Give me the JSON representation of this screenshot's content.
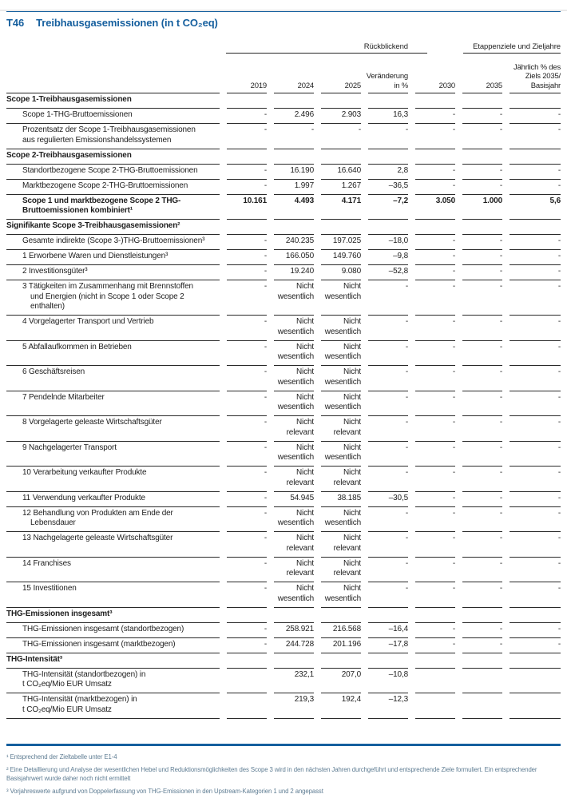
{
  "title": {
    "tag": "T46",
    "text": "Treibhausgasemissionen (in t CO₂eq)"
  },
  "colors": {
    "accent_blue": "#155f9e",
    "text": "#1e1e1e",
    "table_line": "#2a2a2a",
    "footnote_text": "#5f7d93"
  },
  "table": {
    "groups": [
      {
        "label": "Rückblickend"
      },
      {
        "label": "Etappenziele und Zieljahre"
      }
    ],
    "columns": [
      "2019",
      "2024",
      "2025",
      "Veränderung\nin %",
      "2030",
      "2035",
      "Jährlich % des\nZiels 2035/\nBasisjahr"
    ],
    "rows": [
      {
        "type": "section",
        "label": "Scope 1-Treibhausgasemissionen",
        "values": [
          "",
          "",
          "",
          "",
          "",
          "",
          ""
        ]
      },
      {
        "type": "data",
        "label": "Scope 1-THG-Bruttoemissionen",
        "values": [
          "-",
          "2.496",
          "2.903",
          "16,3",
          "-",
          "-",
          "-"
        ]
      },
      {
        "type": "data",
        "label": "Prozentsatz der Scope 1-Treibhausgasemissionen\naus regulierten Emissionshandelssystemen",
        "values": [
          "-",
          "-",
          "-",
          "-",
          "-",
          "-",
          "-"
        ]
      },
      {
        "type": "section",
        "label": "Scope 2-Treibhausgasemissionen",
        "values": [
          "",
          "",
          "",
          "",
          "",
          "",
          ""
        ]
      },
      {
        "type": "data",
        "label": "Standortbezogene Scope 2-THG-Bruttoemissionen",
        "values": [
          "-",
          "16.190",
          "16.640",
          "2,8",
          "-",
          "-",
          "-"
        ]
      },
      {
        "type": "data",
        "label": "Marktbezogene Scope 2-THG-Bruttoemissionen",
        "values": [
          "-",
          "1.997",
          "1.267",
          "–36,5",
          "-",
          "-",
          "-"
        ]
      },
      {
        "type": "total",
        "label": "Scope 1 und marktbezogene Scope 2 THG-\nBruttoemissionen kombiniert¹",
        "values": [
          "10.161",
          "4.493",
          "4.171",
          "–7,2",
          "3.050",
          "1.000",
          "5,6"
        ]
      },
      {
        "type": "section",
        "label": "Signifikante Scope 3-Treibhausgasemissionen²",
        "values": [
          "",
          "",
          "",
          "",
          "",
          "",
          ""
        ]
      },
      {
        "type": "data",
        "label": "Gesamte indirekte (Scope 3-)THG-Bruttoemissionen³",
        "values": [
          "-",
          "240.235",
          "197.025",
          "–18,0",
          "-",
          "-",
          "-"
        ]
      },
      {
        "type": "data",
        "label": "1 Erworbene Waren und Dienstleistungen³",
        "values": [
          "-",
          "166.050",
          "149.760",
          "–9,8",
          "-",
          "-",
          "-"
        ]
      },
      {
        "type": "data",
        "label": "2 Investitionsgüter³",
        "values": [
          "-",
          "19.240",
          "9.080",
          "–52,8",
          "-",
          "-",
          "-"
        ]
      },
      {
        "type": "data",
        "hang": true,
        "label": "3 Tätigkeiten im Zusammenhang mit Brennstoffen\nund Energien (nicht in Scope 1 oder Scope 2\nenthalten)",
        "values": [
          "-",
          "Nicht\nwesentlich",
          "Nicht\nwesentlich",
          "-",
          "-",
          "-",
          "-"
        ]
      },
      {
        "type": "data",
        "label": "4 Vorgelagerter Transport und Vertrieb",
        "values": [
          "-",
          "Nicht\nwesentlich",
          "Nicht\nwesentlich",
          "-",
          "-",
          "-",
          "-"
        ]
      },
      {
        "type": "data",
        "label": "5 Abfallaufkommen in Betrieben",
        "values": [
          "-",
          "Nicht\nwesentlich",
          "Nicht\nwesentlich",
          "-",
          "-",
          "-",
          "-"
        ]
      },
      {
        "type": "data",
        "label": "6 Geschäftsreisen",
        "values": [
          "-",
          "Nicht\nwesentlich",
          "Nicht\nwesentlich",
          "-",
          "-",
          "-",
          "-"
        ]
      },
      {
        "type": "data",
        "label": "7 Pendelnde Mitarbeiter",
        "values": [
          "-",
          "Nicht\nwesentlich",
          "Nicht\nwesentlich",
          "-",
          "-",
          "-",
          "-"
        ]
      },
      {
        "type": "data",
        "label": "8 Vorgelagerte geleaste Wirtschaftsgüter",
        "values": [
          "-",
          "Nicht\nrelevant",
          "Nicht\nrelevant",
          "-",
          "-",
          "-",
          "-"
        ]
      },
      {
        "type": "data",
        "label": "9 Nachgelagerter Transport",
        "values": [
          "-",
          "Nicht\nwesentlich",
          "Nicht\nwesentlich",
          "-",
          "-",
          "-",
          "-"
        ]
      },
      {
        "type": "data",
        "label": "10 Verarbeitung verkaufter Produkte",
        "values": [
          "-",
          "Nicht\nrelevant",
          "Nicht\nrelevant",
          "-",
          "-",
          "-",
          "-"
        ]
      },
      {
        "type": "data",
        "label": "11 Verwendung verkaufter Produkte",
        "values": [
          "-",
          "54.945",
          "38.185",
          "–30,5",
          "-",
          "-",
          "-"
        ]
      },
      {
        "type": "data",
        "hang": true,
        "label": "12 Behandlung von Produkten am Ende der\nLebensdauer",
        "values": [
          "-",
          "Nicht\nwesentlich",
          "Nicht\nwesentlich",
          "-",
          "-",
          "-",
          "-"
        ]
      },
      {
        "type": "data",
        "label": "13 Nachgelagerte geleaste Wirtschaftsgüter",
        "values": [
          "-",
          "Nicht\nrelevant",
          "Nicht\nrelevant",
          "-",
          "-",
          "-",
          "-"
        ]
      },
      {
        "type": "data",
        "label": "14 Franchises",
        "values": [
          "-",
          "Nicht\nrelevant",
          "Nicht\nrelevant",
          "-",
          "-",
          "-",
          "-"
        ]
      },
      {
        "type": "data",
        "label": "15 Investitionen",
        "values": [
          "-",
          "Nicht\nwesentlich",
          "Nicht\nwesentlich",
          "-",
          "-",
          "-",
          "-"
        ]
      },
      {
        "type": "section",
        "label": "THG-Emissionen insgesamt³",
        "values": [
          "",
          "",
          "",
          "",
          "",
          "",
          ""
        ]
      },
      {
        "type": "data",
        "label": "THG-Emissionen insgesamt (standortbezogen)",
        "values": [
          "-",
          "258.921",
          "216.568",
          "–16,4",
          "-",
          "-",
          "-"
        ]
      },
      {
        "type": "data",
        "label": "THG-Emissionen insgesamt (marktbezogen)",
        "values": [
          "-",
          "244.728",
          "201.196",
          "–17,8",
          "-",
          "-",
          "-"
        ]
      },
      {
        "type": "section",
        "label": "THG-Intensität³",
        "values": [
          "",
          "",
          "",
          "",
          "",
          "",
          ""
        ]
      },
      {
        "type": "data",
        "label": "THG-Intensität (standortbezogen) in\nt CO₂eq/Mio EUR Umsatz",
        "values": [
          "",
          "232,1",
          "207,0",
          "–10,8",
          "",
          "",
          ""
        ]
      },
      {
        "type": "data",
        "label": "THG-Intensität (marktbezogen) in\nt CO₂eq/Mio EUR Umsatz",
        "values": [
          "",
          "219,3",
          "192,4",
          "–12,3",
          "",
          "",
          ""
        ]
      }
    ]
  },
  "footnotes": [
    "¹ Entsprechend der Zieltabelle unter E1-4",
    "² Eine Detaillierung und Analyse der wesentlichen Hebel und Reduktionsmöglichkeiten des Scope 3 wird in den nächsten Jahren durchgeführt und entsprechende Ziele formuliert. Ein entsprechender Basisjahrwert wurde daher noch nicht ermittelt",
    "³ Vorjahreswerte aufgrund von Doppelerfassung von THG-Emissionen in den Upstream-Kategorien 1 und 2 angepasst"
  ]
}
